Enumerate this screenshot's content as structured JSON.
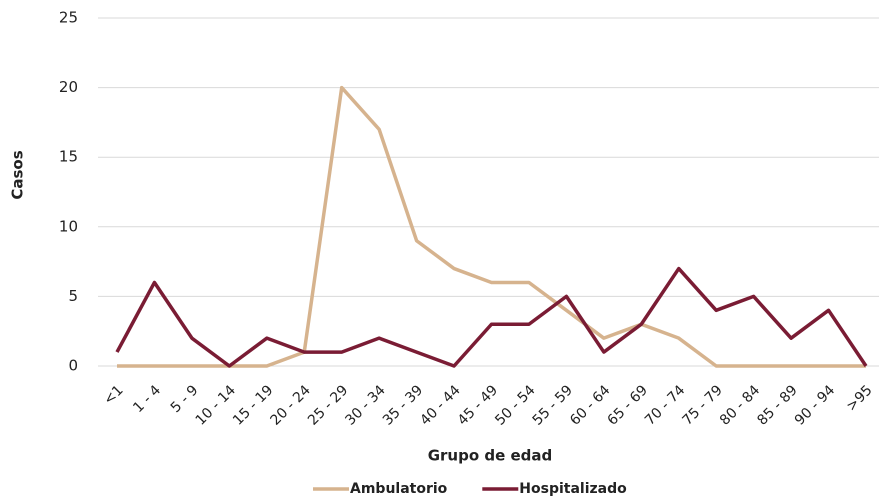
{
  "chart_data": {
    "type": "line",
    "x_label": "Grupo de edad",
    "y_label": "Casos",
    "categories": [
      "<1",
      "1 - 4",
      "5 - 9",
      "10 - 14",
      "15 - 19",
      "20 - 24",
      "25 - 29",
      "30 - 34",
      "35 - 39",
      "40 - 44",
      "45 - 49",
      "50 - 54",
      "55 - 59",
      "60 - 64",
      "65 - 69",
      "70 - 74",
      "75 - 79",
      "80 - 84",
      "85 - 89",
      "90 - 94",
      ">95"
    ],
    "series": [
      {
        "name": "Ambulatorio",
        "color": "#d6b38e",
        "values": [
          0,
          0,
          0,
          0,
          0,
          1,
          20,
          17,
          9,
          7,
          6,
          6,
          4,
          2,
          3,
          2,
          0,
          0,
          0,
          0,
          0
        ]
      },
      {
        "name": "Hospitalizado",
        "color": "#7a1c34",
        "values": [
          1,
          6,
          2,
          0,
          2,
          1,
          1,
          2,
          1,
          0,
          3,
          3,
          5,
          1,
          3,
          7,
          4,
          5,
          2,
          4,
          0
        ]
      }
    ],
    "ylim": [
      0,
      25
    ],
    "yticks": [
      0,
      5,
      10,
      15,
      20,
      25
    ],
    "grid": true,
    "legend": "bottom"
  }
}
